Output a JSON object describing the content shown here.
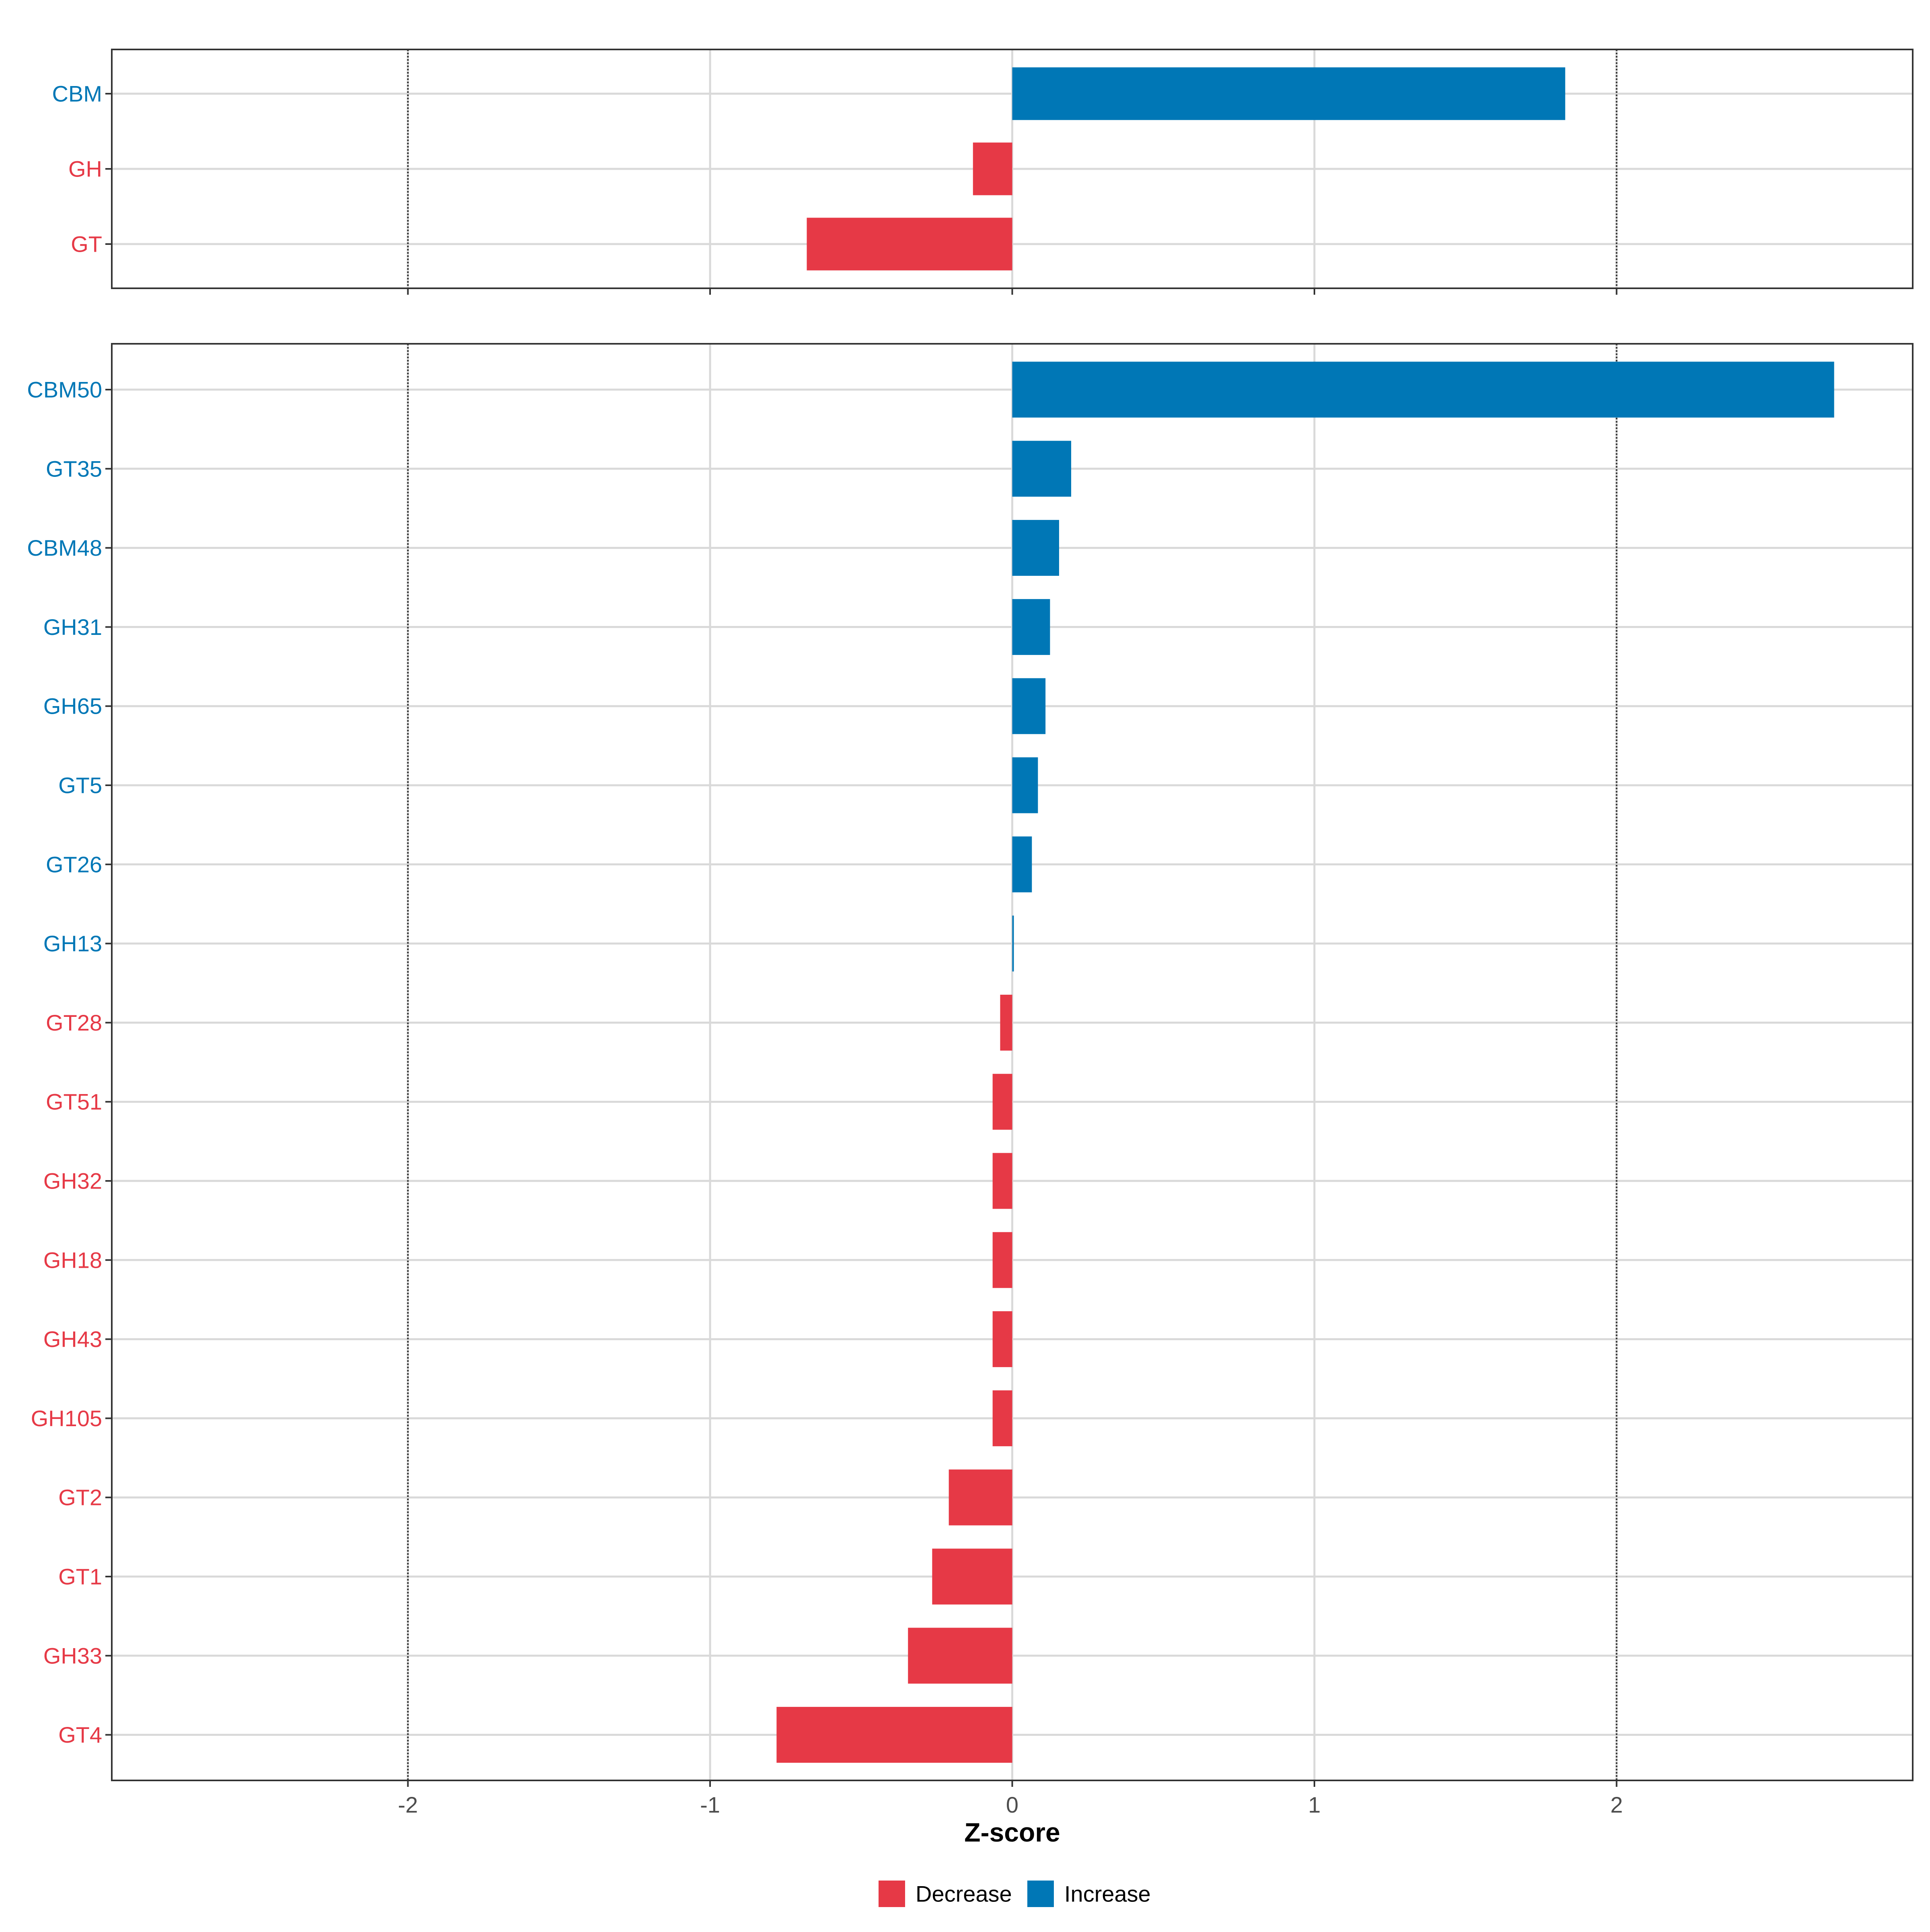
{
  "chart_data": {
    "type": "bar",
    "orientation": "horizontal",
    "xlabel": "Z-score",
    "xlim": [
      -2.98,
      2.98
    ],
    "x_ticks": [
      -2,
      -1,
      0,
      1,
      2
    ],
    "x_tick_labels": [
      "-2",
      "-1",
      "0",
      "1",
      "2"
    ],
    "reference_lines": [
      -2,
      2
    ],
    "grid": true,
    "legend_position": "bottom",
    "colors": {
      "Decrease": "#e63946",
      "Increase": "#0077b6"
    },
    "legend": [
      {
        "label": "Decrease",
        "color": "#e63946"
      },
      {
        "label": "Increase",
        "color": "#0077b6"
      }
    ],
    "panels": [
      {
        "categories": [
          "CBM",
          "GH",
          "GT"
        ],
        "values": [
          1.83,
          -0.13,
          -0.68
        ]
      },
      {
        "categories": [
          "CBM50",
          "GT35",
          "CBM48",
          "GH31",
          "GH65",
          "GT5",
          "GT26",
          "GH13",
          "GT28",
          "GT51",
          "GH32",
          "GH18",
          "GH43",
          "GH105",
          "GT2",
          "GT1",
          "GH33",
          "GT4"
        ],
        "values": [
          2.72,
          0.195,
          0.155,
          0.125,
          0.11,
          0.085,
          0.065,
          0.005,
          -0.04,
          -0.065,
          -0.065,
          -0.065,
          -0.065,
          -0.065,
          -0.21,
          -0.265,
          -0.345,
          -0.78
        ]
      }
    ]
  }
}
